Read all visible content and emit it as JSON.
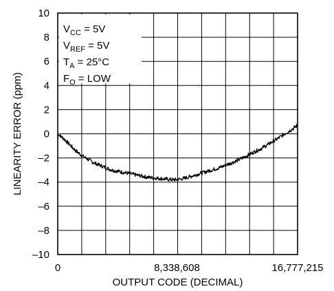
{
  "chart_data": {
    "type": "line",
    "title": "",
    "xlabel": "OUTPUT CODE (DECIMAL)",
    "ylabel": "LINEARITY ERROR (ppm)",
    "xlim": [
      0,
      16777215
    ],
    "ylim": [
      -10,
      10
    ],
    "grid": true,
    "legend": "none",
    "x_ticks": [
      {
        "value": 0,
        "label": "0"
      },
      {
        "value": 8338608,
        "label": "8,338,608"
      },
      {
        "value": 16777215,
        "label": "16,777,215"
      }
    ],
    "y_ticks": [
      {
        "value": 10,
        "label": "10"
      },
      {
        "value": 8,
        "label": "8"
      },
      {
        "value": 6,
        "label": "6"
      },
      {
        "value": 4,
        "label": "4"
      },
      {
        "value": 2,
        "label": "2"
      },
      {
        "value": 0,
        "label": "0"
      },
      {
        "value": -2,
        "label": "–2"
      },
      {
        "value": -4,
        "label": "–4"
      },
      {
        "value": -6,
        "label": "–6"
      },
      {
        "value": -8,
        "label": "–8"
      },
      {
        "value": -10,
        "label": "–10"
      }
    ],
    "annotations": [
      {
        "main": "V",
        "sub": "CC",
        "rest": " = 5V"
      },
      {
        "main": "V",
        "sub": "REF",
        "rest": " = 5V"
      },
      {
        "main": "T",
        "sub": "A",
        "rest": " = 25°C"
      },
      {
        "main": "F",
        "sub": "O",
        "rest": " = LOW"
      }
    ],
    "series": [
      {
        "color": "#000000",
        "x": [
          0,
          419430,
          838861,
          1258291,
          1677722,
          2097152,
          2516582,
          2936013,
          3355443,
          3774874,
          4194304,
          4613734,
          5033165,
          5452595,
          5872026,
          6291456,
          6710886,
          7130317,
          7549747,
          7969178,
          8338608,
          8808038,
          9227469,
          9646899,
          10066330,
          10485760,
          10905190,
          11324621,
          11744051,
          12163482,
          12582912,
          13002342,
          13421773,
          13841203,
          14260634,
          14680064,
          15099494,
          15518925,
          15938355,
          16357786,
          16777215
        ],
        "y": [
          0.0,
          -0.4,
          -0.9,
          -1.4,
          -1.8,
          -2.1,
          -2.4,
          -2.6,
          -2.8,
          -3.0,
          -3.1,
          -3.2,
          -3.3,
          -3.4,
          -3.5,
          -3.6,
          -3.65,
          -3.7,
          -3.75,
          -3.8,
          -3.8,
          -3.7,
          -3.55,
          -3.4,
          -3.25,
          -3.1,
          -2.95,
          -2.8,
          -2.6,
          -2.4,
          -2.2,
          -1.95,
          -1.7,
          -1.45,
          -1.2,
          -0.9,
          -0.6,
          -0.3,
          0.05,
          0.35,
          0.7
        ]
      }
    ]
  }
}
